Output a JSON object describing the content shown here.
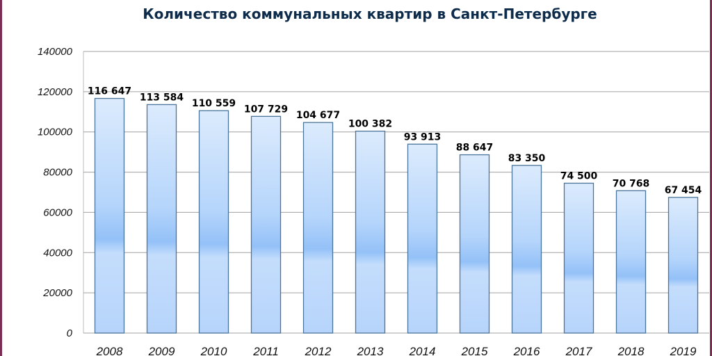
{
  "chart_data": {
    "type": "bar",
    "title": "Количество коммунальных квартир в Санкт-Петербурге",
    "categories": [
      "2008",
      "2009",
      "2010",
      "2011",
      "2012",
      "2013",
      "2014",
      "2015",
      "2016",
      "2017",
      "2018",
      "2019"
    ],
    "values": [
      116647,
      113584,
      110559,
      107729,
      104677,
      100382,
      93913,
      88647,
      83350,
      74500,
      70768,
      67454
    ],
    "data_labels": [
      "116 647",
      "113 584",
      "110 559",
      "107 729",
      "104 677",
      "100 382",
      "93 913",
      "88 647",
      "83 350",
      "74 500",
      "70 768",
      "67 454"
    ],
    "yticks": [
      "0",
      "20000",
      "40000",
      "60000",
      "80000",
      "100000",
      "120000",
      "140000"
    ],
    "ylim": [
      0,
      140000
    ],
    "grid": true,
    "colors": {
      "bar_border": "#4a7499",
      "bar_top": "#dcebfd",
      "bar_mid": "#94c1f8",
      "bar_bottom": "#b6d4fb",
      "frame": "#7a2e52",
      "grid": "#a0a0a0"
    }
  }
}
